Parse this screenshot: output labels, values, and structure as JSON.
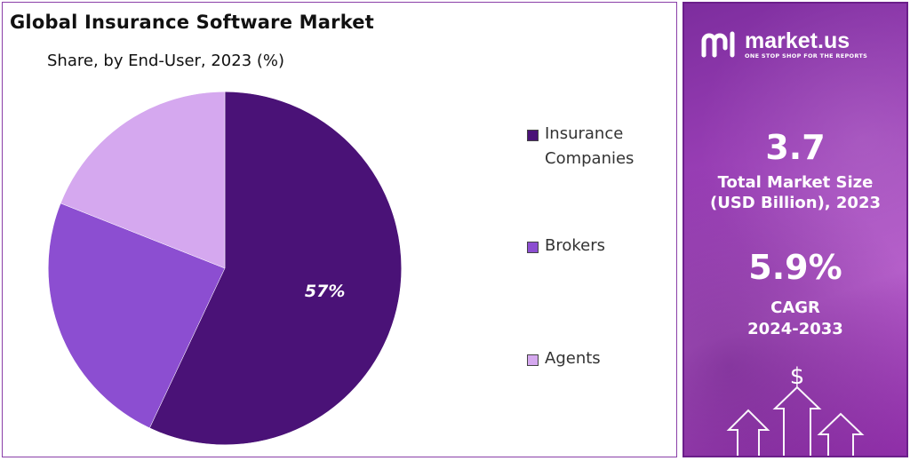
{
  "title": "Global Insurance Software Market",
  "subtitle": "Share, by End-User, 2023 (%)",
  "chart_data": {
    "type": "pie",
    "title": "Global Insurance Software Market",
    "subtitle": "Share, by End-User, 2023 (%)",
    "categories": [
      "Insurance Companies",
      "Brokers",
      "Agents"
    ],
    "values": [
      57,
      24,
      19
    ],
    "data_labels": [
      "57%",
      "",
      ""
    ],
    "colors": [
      "#4a1277",
      "#8c4ed1",
      "#d5a8ef"
    ],
    "start_angle": "12 o'clock",
    "direction": "clockwise",
    "legend_position": "right"
  },
  "legend": [
    {
      "label": "Insurance Companies",
      "color": "#4a1277"
    },
    {
      "label": "Brokers",
      "color": "#8c4ed1"
    },
    {
      "label": "Agents",
      "color": "#d5a8ef"
    }
  ],
  "brand": {
    "name": "market.us",
    "tagline": "ONE STOP SHOP FOR THE REPORTS"
  },
  "stats": {
    "market_size_value": "3.7",
    "market_size_label_1": "Total Market Size",
    "market_size_label_2": "(USD Billion), 2023",
    "cagr_value": "5.9%",
    "cagr_label_1": "CAGR",
    "cagr_label_2": "2024-2033"
  },
  "decor": {
    "dollar_sign": "$"
  }
}
